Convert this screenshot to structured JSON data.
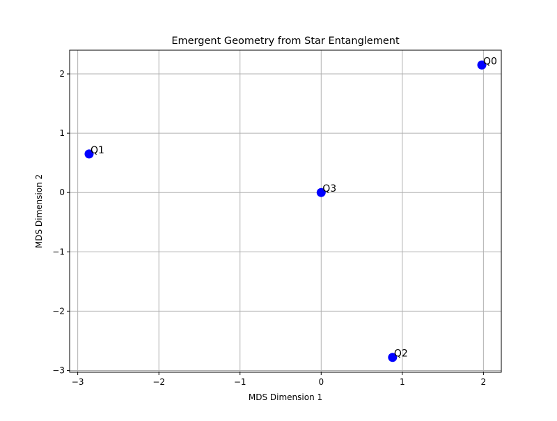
{
  "chart_data": {
    "type": "scatter",
    "title": "Emergent Geometry from Star Entanglement",
    "xlabel": "MDS Dimension 1",
    "ylabel": "MDS Dimension 2",
    "xlim": [
      -3.1,
      2.22
    ],
    "ylim": [
      -3.03,
      2.4
    ],
    "xticks": [
      -3,
      -2,
      -1,
      0,
      1,
      2
    ],
    "yticks": [
      -3,
      -2,
      -1,
      0,
      1,
      2
    ],
    "xtick_labels": [
      "−3",
      "−2",
      "−1",
      "0",
      "1",
      "2"
    ],
    "ytick_labels": [
      "−3",
      "−2",
      "−1",
      "0",
      "1",
      "2"
    ],
    "grid": true,
    "marker_color": "#0000ff",
    "points": [
      {
        "label": "Q0",
        "x": 1.98,
        "y": 2.15
      },
      {
        "label": "Q1",
        "x": -2.86,
        "y": 0.65
      },
      {
        "label": "Q2",
        "x": 0.88,
        "y": -2.78
      },
      {
        "label": "Q3",
        "x": 0.0,
        "y": 0.0
      }
    ]
  }
}
